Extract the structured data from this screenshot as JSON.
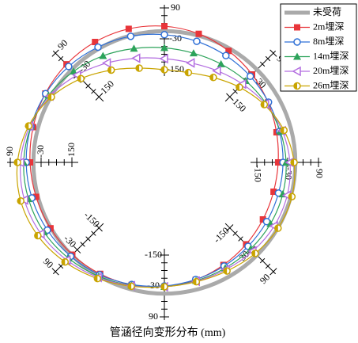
{
  "chart_data": {
    "type": "polar-deformation",
    "title": "管涵径向变形分布 (mm)",
    "theta": [
      0,
      15,
      30,
      45,
      60,
      75,
      90,
      105,
      120,
      135,
      150,
      165,
      180,
      195,
      210,
      225,
      240,
      255,
      270,
      285,
      300,
      315,
      330,
      345
    ],
    "rlim": [
      -510,
      90
    ],
    "rticks": [
      -150,
      -30,
      90
    ],
    "rminorticks": [
      -120,
      -90,
      -60,
      0,
      30,
      60
    ],
    "legend": "top-right",
    "series": [
      {
        "name": "未受荷",
        "color": "#aaaaaa",
        "marker": "none",
        "values": [
          0,
          0,
          0,
          0,
          0,
          0,
          0,
          0,
          0,
          0,
          0,
          0,
          0,
          0,
          0,
          0,
          0,
          0,
          0,
          0,
          0,
          0,
          0,
          0
        ]
      },
      {
        "name": "2m埋深",
        "color": "#e8353a",
        "marker": "square",
        "values": [
          -67,
          -58,
          -44,
          -27,
          -10,
          7,
          19,
          27,
          30,
          29,
          25,
          19,
          13,
          7,
          2,
          -3,
          -10,
          -17,
          -27,
          -38,
          -50,
          -60,
          -67,
          -70
        ]
      },
      {
        "name": "8m埋深",
        "color": "#2e6fd6",
        "marker": "circle",
        "values": [
          -48,
          -46,
          -42,
          -37,
          -31,
          -23,
          -14,
          -3,
          7,
          17,
          24,
          28,
          28,
          24,
          16,
          6,
          -6,
          -19,
          -30,
          -39,
          -45,
          -49,
          -50,
          -50
        ]
      },
      {
        "name": "14m埋深",
        "color": "#2ca35a",
        "marker": "triangle",
        "values": [
          -36,
          -43,
          -53,
          -62,
          -69,
          -71,
          -65,
          -52,
          -32,
          -10,
          11,
          28,
          38,
          38,
          31,
          17,
          1,
          -15,
          -27,
          -34,
          -36,
          -35,
          -33,
          -33
        ]
      },
      {
        "name": "20m埋深",
        "color": "#b36ee0",
        "marker": "triangle-left",
        "values": [
          -21,
          -35,
          -56,
          -80,
          -99,
          -110,
          -107,
          -91,
          -64,
          -30,
          5,
          33,
          50,
          54,
          45,
          27,
          6,
          -14,
          -27,
          -32,
          -30,
          -23,
          -16,
          -15
        ]
      },
      {
        "name": "26m埋深",
        "color": "#c9a400",
        "marker": "half-circle",
        "values": [
          -5,
          -28,
          -61,
          -97,
          -129,
          -149,
          -150,
          -131,
          -96,
          -50,
          -2,
          37,
          62,
          69,
          59,
          37,
          11,
          -12,
          -27,
          -30,
          -23,
          -10,
          1,
          4
        ]
      }
    ]
  }
}
